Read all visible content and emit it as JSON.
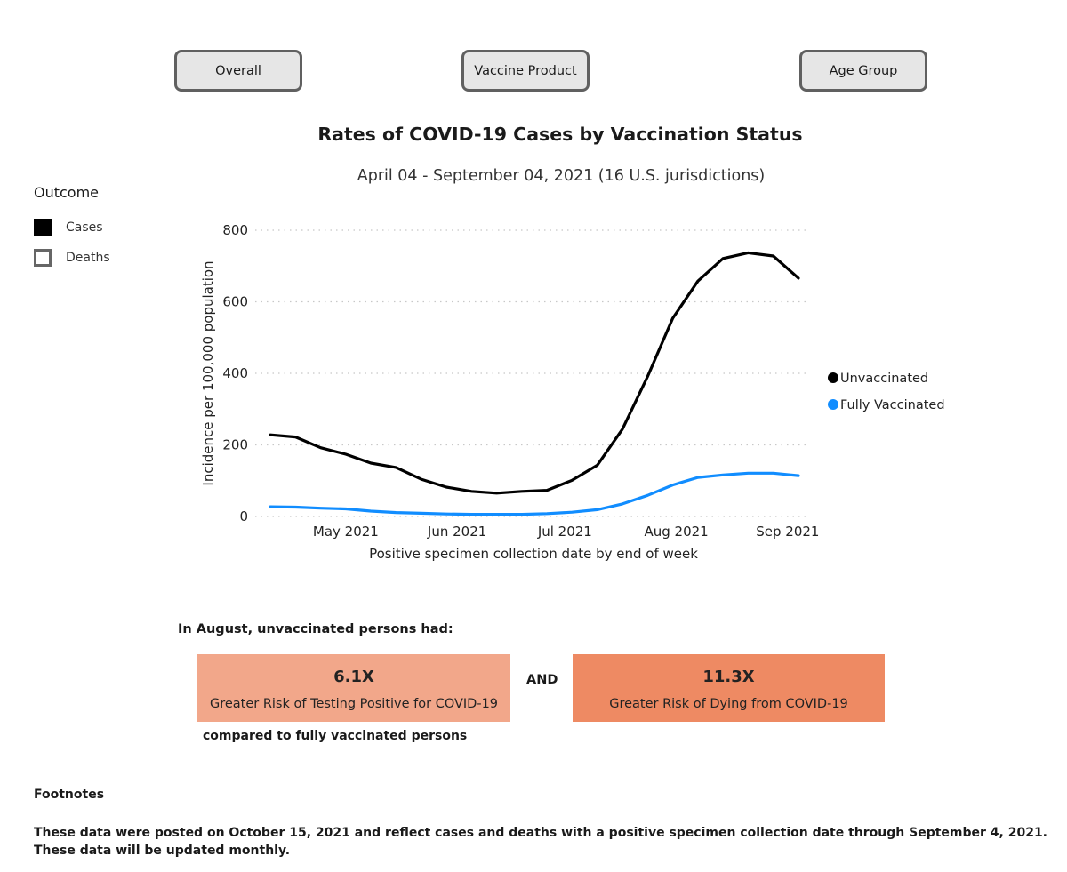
{
  "tabs": [
    {
      "label": "Overall"
    },
    {
      "label": "Vaccine Product"
    },
    {
      "label": "Age Group"
    }
  ],
  "header": {
    "title": "Rates of COVID-19 Cases by Vaccination Status",
    "subtitle": "April 04 - September 04, 2021 (16 U.S. jurisdictions)"
  },
  "outcome": {
    "heading": "Outcome",
    "items": [
      {
        "label": "Cases",
        "selected": true
      },
      {
        "label": "Deaths",
        "selected": false
      }
    ]
  },
  "chart_data": {
    "type": "line",
    "x": [
      "2021-04-10",
      "2021-04-17",
      "2021-04-24",
      "2021-05-01",
      "2021-05-08",
      "2021-05-15",
      "2021-05-22",
      "2021-05-29",
      "2021-06-05",
      "2021-06-12",
      "2021-06-19",
      "2021-06-26",
      "2021-07-03",
      "2021-07-10",
      "2021-07-17",
      "2021-07-24",
      "2021-07-31",
      "2021-08-07",
      "2021-08-14",
      "2021-08-21",
      "2021-08-28",
      "2021-09-04"
    ],
    "series": [
      {
        "name": "Unvaccinated",
        "color": "#000000",
        "values": [
          228,
          222,
          192,
          174,
          149,
          137,
          104,
          82,
          70,
          65,
          70,
          73,
          101,
          143,
          244,
          391,
          554,
          658,
          721,
          737,
          728,
          666
        ]
      },
      {
        "name": "Fully Vaccinated",
        "color": "#118dff",
        "values": [
          27,
          26,
          23,
          21,
          15,
          11,
          9,
          7,
          6,
          6,
          6,
          8,
          12,
          19,
          35,
          59,
          88,
          109,
          116,
          121,
          121,
          114
        ]
      }
    ],
    "x_ticks": [
      {
        "label": "May 2021",
        "date": "2021-05-01"
      },
      {
        "label": "Jun 2021",
        "date": "2021-06-01"
      },
      {
        "label": "Jul 2021",
        "date": "2021-07-01"
      },
      {
        "label": "Aug 2021",
        "date": "2021-08-01"
      },
      {
        "label": "Sep 2021",
        "date": "2021-09-01"
      }
    ],
    "y_ticks": [
      0,
      200,
      400,
      600,
      800
    ],
    "ylim": [
      0,
      800
    ],
    "xlim": [
      "2021-04-10",
      "2021-09-04"
    ],
    "xlabel": "Positive specimen collection date by end of week",
    "ylabel": "Incidence per 100,000 population",
    "grid": true,
    "legend_position": "right"
  },
  "risk": {
    "intro": "In August, unvaccinated persons had:",
    "cards": [
      {
        "value": "6.1X",
        "label": "Greater Risk of Testing Positive for COVID-19",
        "color": "#f2a78a"
      },
      {
        "value": "11.3X",
        "label": "Greater Risk of Dying from COVID-19",
        "color": "#ee8a63"
      }
    ],
    "and_text": "AND",
    "compare_text": "compared to fully vaccinated persons"
  },
  "footnotes": {
    "heading": "Footnotes",
    "text": "These data were posted on October 15, 2021 and reflect cases and deaths with a positive specimen collection date through September 4, 2021. These data will be updated monthly."
  }
}
